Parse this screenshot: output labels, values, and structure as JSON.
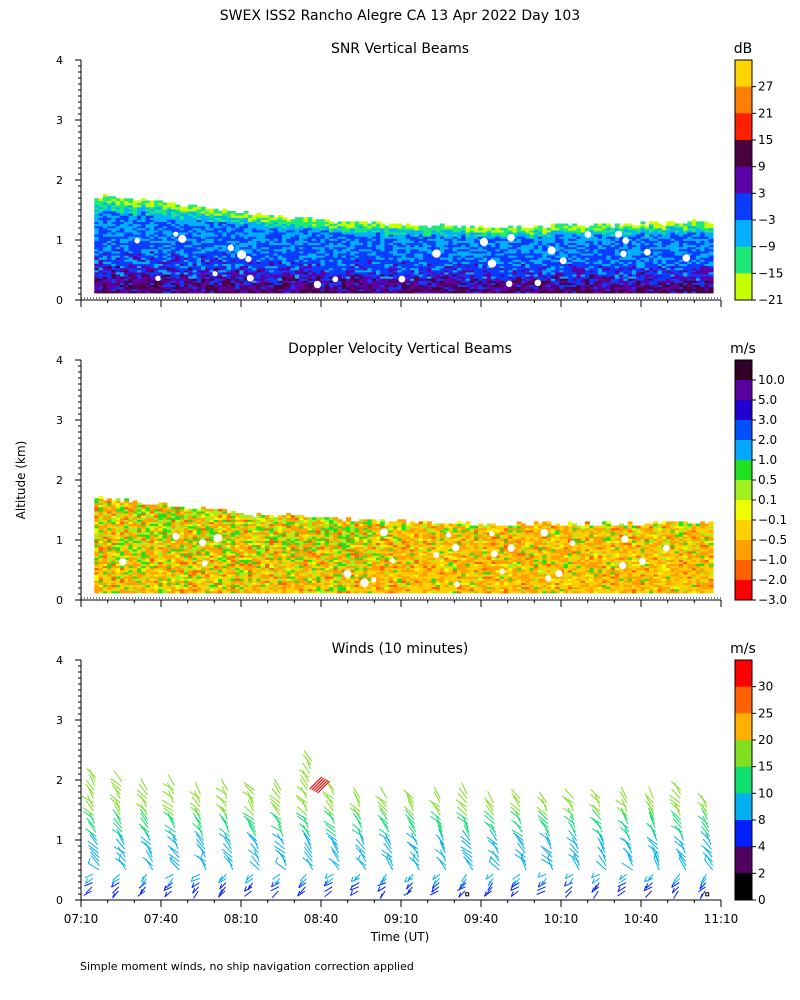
{
  "figure_title": "SWEX ISS2 Rancho Alegre CA  13 Apr 2022 Day 103",
  "footnote": "Simple moment winds, no ship navigation correction applied",
  "y_axis_label": "Altitude (km)",
  "x_axis_label": "Time (UT)",
  "time_tick_labels": [
    "07:10",
    "07:40",
    "08:10",
    "08:40",
    "09:10",
    "09:40",
    "10:10",
    "10:40",
    "11:10"
  ],
  "chart_data": [
    {
      "type": "heatmap",
      "title": "SNR Vertical Beams",
      "ylabel": "Altitude (km)",
      "ylim": [
        0,
        4
      ],
      "yticks": [
        0,
        1,
        2,
        3,
        4
      ],
      "xlim": [
        "07:10",
        "11:10"
      ],
      "colorbar_unit": "dB",
      "colorbar_labels": [
        "27",
        "21",
        "15",
        "9",
        "3",
        "−3",
        "−9",
        "−15",
        "−21"
      ],
      "colorbar_colors": [
        "#ffd400",
        "#ff7f00",
        "#ff2000",
        "#4a0040",
        "#5c00a8",
        "#0a3cff",
        "#00b0ff",
        "#1ee878",
        "#c8ff00"
      ],
      "data_top_km": [
        1.7,
        1.65,
        1.5,
        1.4,
        1.32,
        1.27,
        1.22,
        1.2,
        1.2,
        1.22,
        1.26,
        1.3
      ],
      "dominant_levels": [
        "−9",
        "−3",
        "3",
        "9"
      ]
    },
    {
      "type": "heatmap",
      "title": "Doppler Velocity Vertical Beams",
      "ylabel": "Altitude (km)",
      "ylim": [
        0,
        4
      ],
      "yticks": [
        0,
        1,
        2,
        3,
        4
      ],
      "xlim": [
        "07:10",
        "11:10"
      ],
      "colorbar_unit": "m/s",
      "colorbar_labels": [
        "10.0",
        "5.0",
        "3.0",
        "2.0",
        "1.0",
        "0.5",
        "0.1",
        "−0.1",
        "−0.5",
        "−1.0",
        "−2.0",
        "−3.0"
      ],
      "colorbar_colors": [
        "#300028",
        "#5a00a0",
        "#2000d0",
        "#0050ff",
        "#00a8ff",
        "#20e020",
        "#a0f020",
        "#f0ff00",
        "#ffd000",
        "#ffa000",
        "#ff6000",
        "#ff0000"
      ],
      "data_top_km": [
        1.7,
        1.6,
        1.5,
        1.4,
        1.35,
        1.3,
        1.27,
        1.25,
        1.25,
        1.25,
        1.27,
        1.3
      ],
      "dominant_levels": [
        "−0.1",
        "−0.5",
        "0.1",
        "0.5"
      ]
    },
    {
      "type": "scatter",
      "title": "Winds (10 minutes)",
      "ylabel": "Altitude (km)",
      "ylim": [
        0,
        4
      ],
      "yticks": [
        0,
        1,
        2,
        3,
        4
      ],
      "xlim": [
        "07:10",
        "11:10"
      ],
      "colorbar_unit": "m/s",
      "colorbar_labels": [
        "30",
        "25",
        "20",
        "15",
        "10",
        "8",
        "4",
        "2",
        "0"
      ],
      "colorbar_colors": [
        "#ff0000",
        "#ff6000",
        "#ffb000",
        "#80e020",
        "#10e070",
        "#00b0f0",
        "#0020ff",
        "#500060",
        "#000000"
      ],
      "profile_times_min_after_0710": [
        5,
        15,
        25,
        35,
        45,
        55,
        65,
        75,
        85,
        95,
        105,
        115,
        125,
        135,
        145,
        155,
        165,
        175,
        185,
        195,
        205,
        215,
        225,
        235
      ],
      "profile_top_km": [
        2.1,
        2.0,
        1.9,
        1.95,
        1.8,
        1.85,
        1.9,
        1.85,
        2.35,
        1.9,
        1.7,
        1.75,
        1.75,
        1.75,
        1.8,
        1.65,
        1.7,
        1.65,
        1.7,
        1.7,
        1.7,
        1.7,
        1.9,
        1.65
      ],
      "wind_speed_ms_by_altitude": {
        "0.2_km": 4,
        "0.6_km": 8,
        "1.0_km": 10,
        "1.5_km": 14,
        "2.0_km": 16
      }
    }
  ]
}
